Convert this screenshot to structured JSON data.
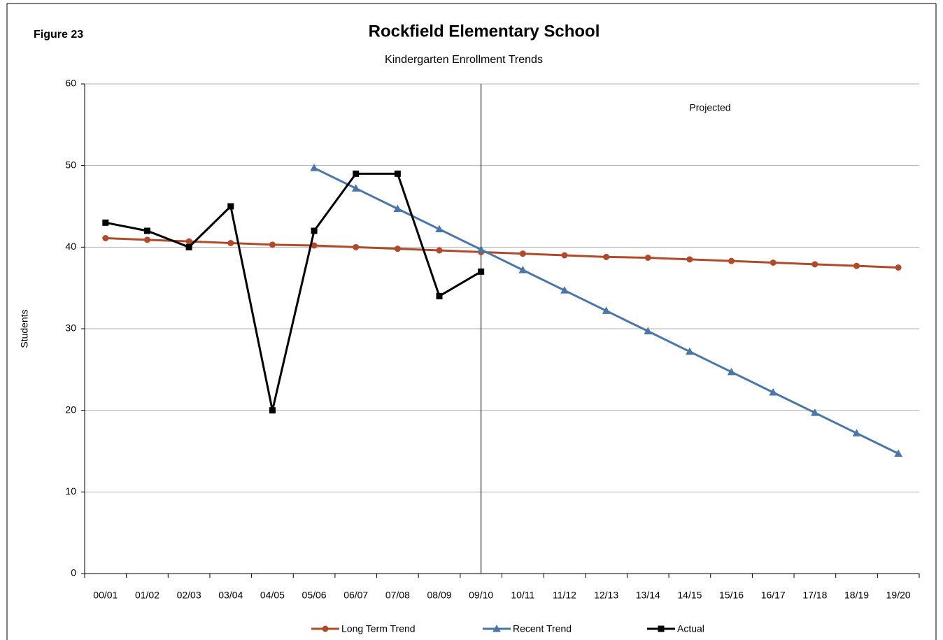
{
  "chart_data": {
    "type": "line",
    "label": "Figure 23",
    "title": "Rockfield Elementary School",
    "subtitle": "Kindergarten Enrollment Trends",
    "y_label": "Students",
    "annotations": [
      "Projected"
    ],
    "categories": [
      "00/01",
      "01/02",
      "02/03",
      "03/04",
      "04/05",
      "05/06",
      "06/07",
      "07/08",
      "08/09",
      "09/10",
      "10/11",
      "11/12",
      "12/13",
      "13/14",
      "14/15",
      "15/16",
      "16/17",
      "17/18",
      "18/19",
      "19/20"
    ],
    "series": [
      {
        "name": "Long Term Trend",
        "color": "#b04a2a",
        "marker": "circle",
        "values": [
          41.1,
          40.9,
          40.7,
          40.5,
          40.3,
          40.2,
          40.0,
          39.8,
          39.6,
          39.4,
          39.2,
          39.0,
          38.8,
          38.7,
          38.5,
          38.3,
          38.1,
          37.9,
          37.7,
          37.5
        ]
      },
      {
        "name": "Recent Trend",
        "color": "#4a76a8",
        "marker": "triangle",
        "values": [
          null,
          null,
          null,
          null,
          null,
          49.7,
          47.2,
          44.7,
          42.2,
          39.7,
          37.2,
          34.7,
          32.2,
          29.7,
          27.2,
          24.7,
          22.2,
          19.7,
          17.2,
          14.7
        ]
      },
      {
        "name": "Actual",
        "color": "#000000",
        "marker": "square",
        "values": [
          43,
          42,
          40,
          45,
          20,
          42,
          49,
          49,
          34,
          37,
          null,
          null,
          null,
          null,
          null,
          null,
          null,
          null,
          null,
          null
        ]
      }
    ],
    "ylim": [
      0,
      60
    ],
    "yticks": [
      0,
      10,
      20,
      30,
      40,
      50,
      60
    ],
    "grid": true,
    "legend": "bottom"
  }
}
